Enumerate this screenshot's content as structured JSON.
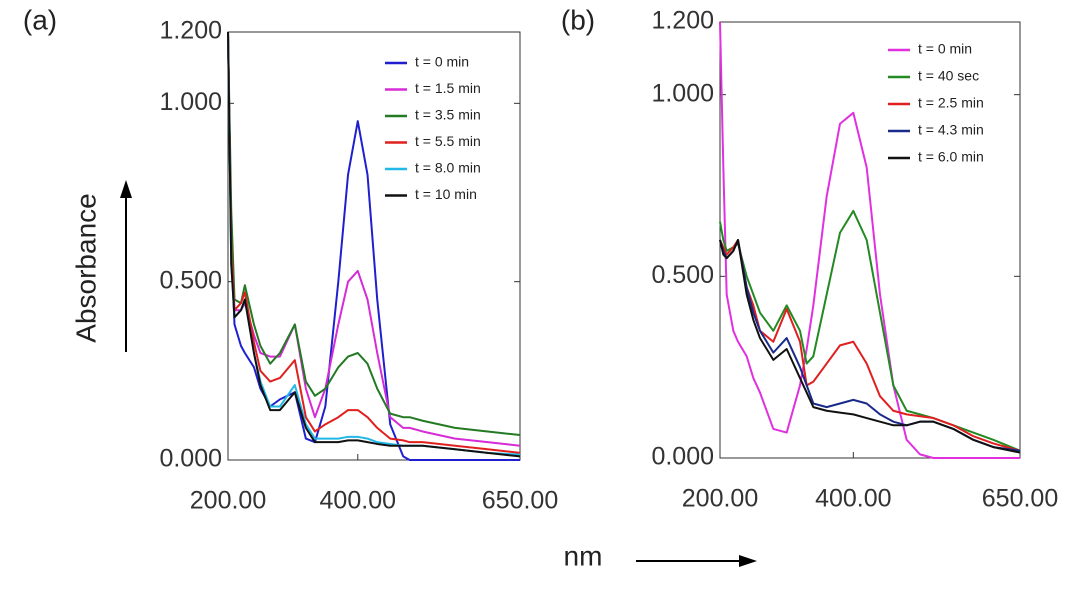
{
  "chart_data": [
    {
      "type": "line",
      "label": "(a)",
      "legend": "upper right",
      "x": [
        200,
        205,
        210,
        220,
        226,
        240,
        250,
        265,
        280,
        303,
        320,
        334,
        350,
        370,
        385,
        400,
        415,
        430,
        450,
        470,
        480,
        500,
        550,
        600,
        650
      ],
      "xlim": [
        200,
        650
      ],
      "xticks": [
        {
          "value": 200,
          "label": "200.00"
        },
        {
          "value": 400,
          "label": "400.00"
        },
        {
          "value": 650,
          "label": "650.00"
        }
      ],
      "ylim": [
        0,
        1.2
      ],
      "yticks": [
        {
          "value": 0,
          "label": "0.000"
        },
        {
          "value": 0.5,
          "label": "0.500"
        },
        {
          "value": 1,
          "label": "1.000"
        },
        {
          "value": 1.2,
          "label": "1.200"
        }
      ],
      "series": [
        {
          "name": "t = 0 min",
          "color": "#1f1fd0",
          "values": [
            1.2,
            0.6,
            0.38,
            0.32,
            0.3,
            0.26,
            0.2,
            0.15,
            0.17,
            0.19,
            0.06,
            0.05,
            0.15,
            0.5,
            0.8,
            0.95,
            0.8,
            0.45,
            0.1,
            0.01,
            0,
            0,
            0,
            0,
            0
          ]
        },
        {
          "name": "t = 1.5 min",
          "color": "#d62bd6",
          "values": [
            1.2,
            0.6,
            0.42,
            0.42,
            0.44,
            0.35,
            0.3,
            0.29,
            0.29,
            0.38,
            0.2,
            0.12,
            0.2,
            0.38,
            0.5,
            0.53,
            0.45,
            0.3,
            0.12,
            0.09,
            0.09,
            0.08,
            0.06,
            0.05,
            0.04
          ]
        },
        {
          "name": "t = 3.5 min",
          "color": "#237a23",
          "values": [
            1.2,
            0.7,
            0.45,
            0.44,
            0.49,
            0.38,
            0.32,
            0.27,
            0.3,
            0.38,
            0.22,
            0.18,
            0.2,
            0.26,
            0.29,
            0.3,
            0.27,
            0.2,
            0.13,
            0.12,
            0.12,
            0.11,
            0.09,
            0.08,
            0.07
          ]
        },
        {
          "name": "t = 5.5 min",
          "color": "#e0201e",
          "values": [
            1.2,
            0.6,
            0.42,
            0.44,
            0.47,
            0.33,
            0.25,
            0.22,
            0.23,
            0.28,
            0.12,
            0.08,
            0.1,
            0.12,
            0.14,
            0.14,
            0.12,
            0.09,
            0.06,
            0.055,
            0.05,
            0.05,
            0.04,
            0.03,
            0.02
          ]
        },
        {
          "name": "t = 8.0 min",
          "color": "#22b8e8",
          "values": [
            1.2,
            0.55,
            0.4,
            0.42,
            0.45,
            0.3,
            0.22,
            0.15,
            0.15,
            0.21,
            0.1,
            0.06,
            0.06,
            0.06,
            0.065,
            0.065,
            0.06,
            0.05,
            0.045,
            0.04,
            0.04,
            0.04,
            0.03,
            0.02,
            0.015
          ]
        },
        {
          "name": "t = 10 min",
          "color": "#111111",
          "values": [
            1.2,
            0.55,
            0.4,
            0.42,
            0.45,
            0.3,
            0.21,
            0.14,
            0.14,
            0.19,
            0.09,
            0.05,
            0.05,
            0.05,
            0.055,
            0.055,
            0.05,
            0.045,
            0.04,
            0.04,
            0.04,
            0.04,
            0.03,
            0.02,
            0.01
          ]
        }
      ]
    },
    {
      "type": "line",
      "label": "(b)",
      "legend": "upper right",
      "x": [
        200,
        205,
        210,
        220,
        227,
        240,
        250,
        260,
        280,
        300,
        320,
        330,
        340,
        360,
        380,
        400,
        420,
        440,
        460,
        480,
        500,
        520,
        550,
        580,
        610,
        650
      ],
      "xlim": [
        200,
        650
      ],
      "xticks": [
        {
          "value": 200,
          "label": "200.00"
        },
        {
          "value": 400,
          "label": "400.00"
        },
        {
          "value": 650,
          "label": "650.00"
        }
      ],
      "ylim": [
        0,
        1.2
      ],
      "yticks": [
        {
          "value": 0,
          "label": "0.000"
        },
        {
          "value": 0.5,
          "label": "0.500"
        },
        {
          "value": 1,
          "label": "1.000"
        },
        {
          "value": 1.2,
          "label": "1.200"
        }
      ],
      "series": [
        {
          "name": "t = 0 min",
          "color": "#e030e0",
          "values": [
            1.2,
            0.8,
            0.45,
            0.35,
            0.32,
            0.28,
            0.22,
            0.18,
            0.08,
            0.07,
            0.2,
            0.3,
            0.42,
            0.72,
            0.92,
            0.95,
            0.8,
            0.45,
            0.2,
            0.05,
            0.01,
            0,
            0,
            0,
            0,
            0
          ]
        },
        {
          "name": "t = 40 sec",
          "color": "#238a23",
          "values": [
            0.65,
            0.6,
            0.57,
            0.58,
            0.59,
            0.5,
            0.45,
            0.4,
            0.35,
            0.42,
            0.35,
            0.26,
            0.28,
            0.45,
            0.62,
            0.68,
            0.6,
            0.4,
            0.2,
            0.13,
            0.12,
            0.11,
            0.09,
            0.07,
            0.05,
            0.02
          ]
        },
        {
          "name": "t = 2.5 min",
          "color": "#e02020",
          "values": [
            0.6,
            0.58,
            0.56,
            0.58,
            0.6,
            0.47,
            0.42,
            0.35,
            0.32,
            0.41,
            0.32,
            0.2,
            0.21,
            0.26,
            0.31,
            0.32,
            0.26,
            0.17,
            0.13,
            0.12,
            0.115,
            0.11,
            0.09,
            0.06,
            0.04,
            0.02
          ]
        },
        {
          "name": "t = 4.3 min",
          "color": "#1a2a8a",
          "values": [
            0.6,
            0.57,
            0.55,
            0.57,
            0.6,
            0.47,
            0.4,
            0.35,
            0.29,
            0.33,
            0.25,
            0.2,
            0.15,
            0.14,
            0.15,
            0.16,
            0.15,
            0.12,
            0.1,
            0.09,
            0.1,
            0.1,
            0.08,
            0.05,
            0.03,
            0.02
          ]
        },
        {
          "name": "t = 6.0 min",
          "color": "#111111",
          "values": [
            0.6,
            0.56,
            0.55,
            0.57,
            0.6,
            0.45,
            0.38,
            0.33,
            0.27,
            0.3,
            0.22,
            0.18,
            0.14,
            0.13,
            0.125,
            0.12,
            0.11,
            0.1,
            0.09,
            0.09,
            0.1,
            0.1,
            0.08,
            0.05,
            0.03,
            0.015
          ]
        }
      ]
    }
  ],
  "ylabel": "Absorbance",
  "xlabel": "nm"
}
